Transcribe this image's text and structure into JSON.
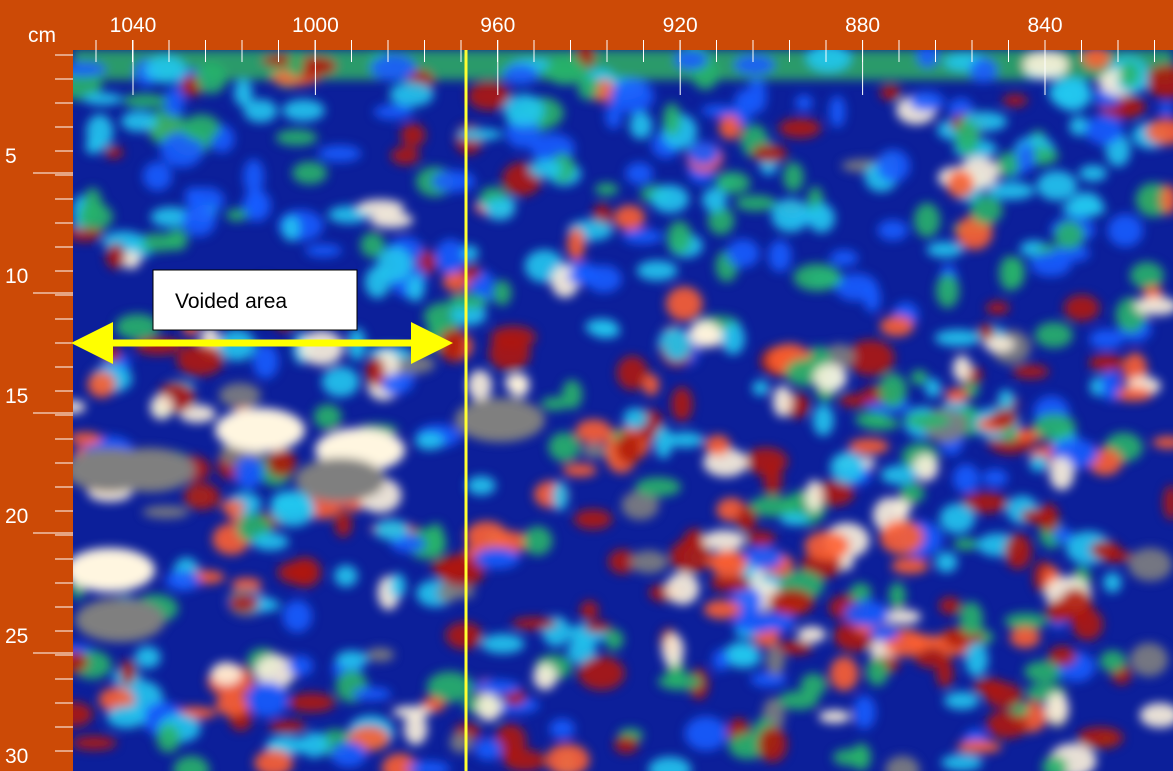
{
  "axes": {
    "unit": "cm",
    "top_ticks": [
      1040,
      1000,
      960,
      920,
      880,
      840
    ],
    "left_ticks": [
      5,
      10,
      15,
      20,
      25,
      30
    ]
  },
  "annotation": {
    "label": "Voided area"
  }
}
